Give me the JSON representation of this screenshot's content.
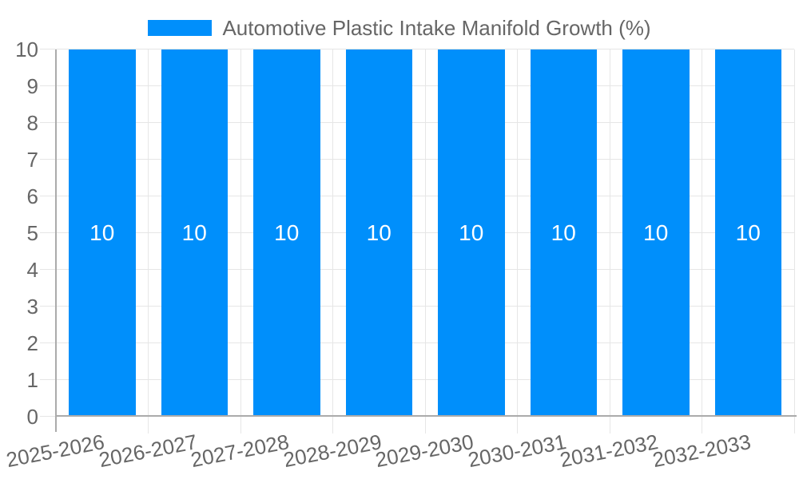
{
  "chart_data": {
    "type": "bar",
    "title": "Automotive Plastic Intake Manifold Growth (%)",
    "categories": [
      "2025-2026",
      "2026-2027",
      "2027-2028",
      "2028-2029",
      "2029-2030",
      "2030-2031",
      "2031-2032",
      "2032-2033"
    ],
    "series": [
      {
        "name": "Automotive Plastic Intake Manifold Growth (%)",
        "values": [
          10,
          10,
          10,
          10,
          10,
          10,
          10,
          10
        ]
      }
    ],
    "data_labels": [
      "10",
      "10",
      "10",
      "10",
      "10",
      "10",
      "10",
      "10"
    ],
    "ytick_labels": [
      "0",
      "1",
      "2",
      "3",
      "4",
      "5",
      "6",
      "7",
      "8",
      "9",
      "10"
    ],
    "ylim": [
      0,
      10
    ],
    "ytick_step": 1,
    "xlabel": "",
    "ylabel": "",
    "grid": true,
    "legend_position": "top",
    "x_label_rotation_deg": -11,
    "colors": {
      "bar": "#008FFB",
      "data_label": "#FFFFFF",
      "axis_text": "#666666",
      "grid_line": "#E6E6E6",
      "axis_line": "#ABABAB"
    }
  }
}
